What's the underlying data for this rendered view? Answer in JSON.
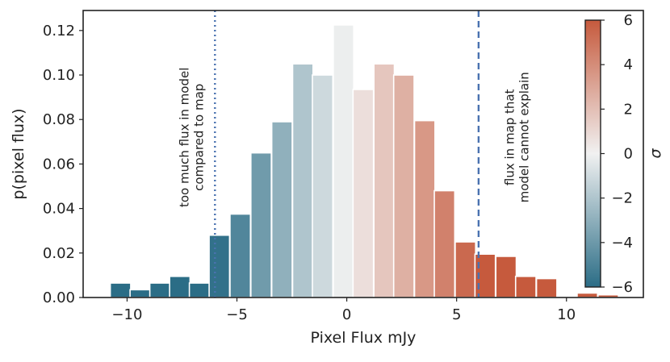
{
  "chart_data": {
    "type": "bar",
    "title": "",
    "xlabel": "Pixel Flux mJy",
    "ylabel": "p(pixel flux)",
    "xlim": [
      -12.0,
      13.5
    ],
    "ylim": [
      0,
      0.129
    ],
    "xticks": [
      -10,
      -5,
      0,
      5,
      10
    ],
    "xtick_labels": [
      "−10",
      "−5",
      "0",
      "5",
      "10"
    ],
    "yticks": [
      0,
      0.02,
      0.04,
      0.06,
      0.08,
      0.1,
      0.12
    ],
    "ytick_labels": [
      "0.00",
      "0.02",
      "0.04",
      "0.06",
      "0.08",
      "0.10",
      "0.12"
    ],
    "grid": false,
    "bin_width": 0.93,
    "bins": [
      {
        "x": -10.3,
        "value": 0.0065
      },
      {
        "x": -9.4,
        "value": 0.0035
      },
      {
        "x": -8.5,
        "value": 0.0065
      },
      {
        "x": -7.6,
        "value": 0.0095
      },
      {
        "x": -6.7,
        "value": 0.0065
      },
      {
        "x": -5.8,
        "value": 0.028
      },
      {
        "x": -4.85,
        "value": 0.0375
      },
      {
        "x": -3.9,
        "value": 0.065
      },
      {
        "x": -2.95,
        "value": 0.079
      },
      {
        "x": -2.0,
        "value": 0.105
      },
      {
        "x": -1.1,
        "value": 0.1
      },
      {
        "x": -0.15,
        "value": 0.1225
      },
      {
        "x": 0.75,
        "value": 0.0935
      },
      {
        "x": 1.7,
        "value": 0.105
      },
      {
        "x": 2.6,
        "value": 0.1
      },
      {
        "x": 3.55,
        "value": 0.0795
      },
      {
        "x": 4.45,
        "value": 0.048
      },
      {
        "x": 5.4,
        "value": 0.025
      },
      {
        "x": 6.3,
        "value": 0.0195
      },
      {
        "x": 7.25,
        "value": 0.0185
      },
      {
        "x": 8.15,
        "value": 0.0095
      },
      {
        "x": 9.1,
        "value": 0.0085
      },
      {
        "x": 10.05,
        "value": 0.0
      },
      {
        "x": 10.95,
        "value": 0.002
      },
      {
        "x": 11.9,
        "value": 0.0012
      }
    ],
    "vlines": [
      {
        "x": -6.0,
        "style": "dotted",
        "color": "#4a72b0"
      },
      {
        "x": 6.0,
        "style": "dashed",
        "color": "#4a72b0"
      }
    ],
    "annotations": [
      {
        "text": "too much flux in model\ncompared to map",
        "x": -7.2,
        "y": 0.072
      },
      {
        "text": "flux in map that\nmodel cannot explain",
        "x": 7.6,
        "y": 0.072
      }
    ],
    "colorbar": {
      "label": "σ",
      "range": [
        -6,
        6
      ],
      "ticks": [
        6,
        4,
        2,
        0,
        -2,
        -4,
        -6
      ],
      "tick_labels": [
        "6",
        "4",
        "2",
        "0",
        "−2",
        "−4",
        "−6"
      ],
      "colormap": [
        "#2b6d86",
        "#f1f1f1",
        "#c65a3d"
      ],
      "sigma_per_mjy": 1.0
    }
  }
}
